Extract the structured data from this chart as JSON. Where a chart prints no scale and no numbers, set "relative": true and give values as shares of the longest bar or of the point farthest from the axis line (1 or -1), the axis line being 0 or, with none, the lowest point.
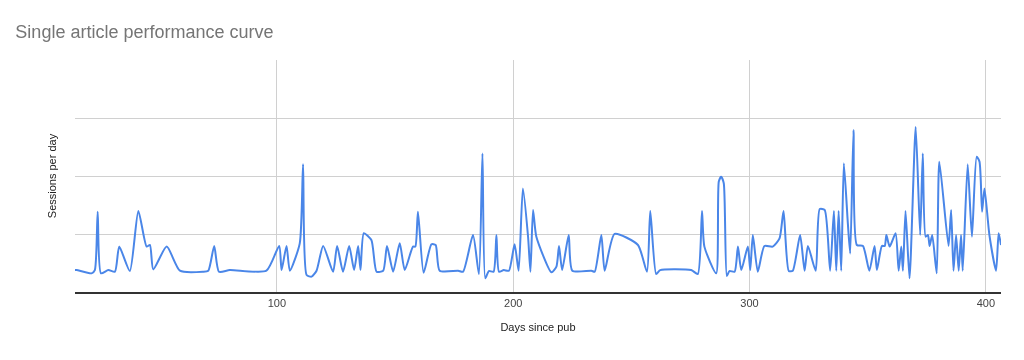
{
  "chart_data": {
    "type": "line",
    "title": "Single article performance curve",
    "xlabel": "Days since pub",
    "ylabel": "Sessions per day",
    "relative": true,
    "grid": true,
    "marker": "none",
    "line_style": "solid",
    "xlim": [
      14.6,
      406.4
    ],
    "xticks": [
      100,
      200,
      300,
      400
    ],
    "x": [
      14.6,
      15.3,
      21.6,
      23.0,
      24.2,
      25.6,
      28.7,
      31.5,
      33.3,
      37.8,
      41.4,
      44.9,
      46.3,
      47.7,
      53.4,
      59.0,
      68.7,
      71.0,
      73.5,
      75.5,
      80.1,
      95.6,
      101.0,
      102.0,
      104.1,
      105.5,
      109.7,
      111.1,
      112.6,
      114.7,
      116.8,
      119.6,
      123.8,
      125.5,
      128.0,
      130.6,
      132.7,
      134.4,
      135.4,
      136.8,
      140.0,
      142.2,
      145.0,
      146.6,
      149.2,
      152.0,
      154.1,
      157.6,
      158.6,
      159.7,
      162.1,
      165.4,
      167.2,
      168.9,
      176.7,
      178.8,
      183.0,
      185.5,
      187.0,
      188.2,
      189.7,
      191.7,
      192.9,
      194.0,
      196.0,
      198.2,
      200.6,
      202.3,
      204.1,
      206.3,
      207.3,
      208.4,
      209.8,
      216.2,
      218.3,
      219.4,
      220.7,
      223.5,
      225.0,
      233.1,
      234.5,
      237.3,
      238.7,
      242.9,
      252.8,
      256.6,
      258.0,
      260.5,
      262.2,
      275.3,
      278.1,
      279.9,
      280.9,
      285.9,
      287.0,
      288.0,
      289.1,
      290.4,
      291.5,
      293.7,
      295.1,
      296.5,
      299.3,
      300.3,
      301.4,
      303.5,
      306.3,
      309.8,
      312.7,
      314.4,
      316.6,
      318.3,
      321.4,
      323.3,
      324.7,
      328.0,
      329.7,
      331.8,
      334.1,
      335.7,
      336.7,
      337.7,
      338.8,
      339.9,
      341.6,
      342.6,
      344.0,
      345.4,
      348.0,
      350.7,
      352.9,
      353.9,
      356.0,
      357.2,
      357.9,
      359.3,
      361.8,
      363.1,
      364.2,
      364.9,
      366.0,
      367.7,
      370.3,
      372.2,
      373.3,
      374.5,
      375.5,
      376.2,
      377.3,
      379.2,
      380.3,
      384.2,
      385.3,
      386.3,
      387.4,
      388.5,
      389.5,
      390.2,
      392.3,
      394.1,
      396.1,
      397.3,
      398.4,
      399.4,
      401.5,
      404.3,
      405.4,
      406.4
    ],
    "series": [
      {
        "color": "#4a86e8",
        "values": [
          0.133,
          0.133,
          0.113,
          0.133,
          0.487,
          0.113,
          0.133,
          0.123,
          0.275,
          0.127,
          0.491,
          0.275,
          0.285,
          0.137,
          0.275,
          0.129,
          0.123,
          0.129,
          0.279,
          0.123,
          0.133,
          0.129,
          0.279,
          0.133,
          0.279,
          0.129,
          0.295,
          0.774,
          0.103,
          0.093,
          0.129,
          0.279,
          0.123,
          0.279,
          0.123,
          0.279,
          0.133,
          0.279,
          0.133,
          0.356,
          0.315,
          0.123,
          0.129,
          0.279,
          0.123,
          0.295,
          0.133,
          0.275,
          0.275,
          0.487,
          0.117,
          0.289,
          0.285,
          0.129,
          0.129,
          0.123,
          0.345,
          0.109,
          0.84,
          0.083,
          0.127,
          0.123,
          0.345,
          0.123,
          0.133,
          0.129,
          0.289,
          0.129,
          0.628,
          0.335,
          0.123,
          0.497,
          0.335,
          0.119,
          0.154,
          0.279,
          0.133,
          0.345,
          0.129,
          0.129,
          0.123,
          0.345,
          0.129,
          0.352,
          0.285,
          0.123,
          0.491,
          0.109,
          0.133,
          0.133,
          0.109,
          0.491,
          0.275,
          0.113,
          0.669,
          0.699,
          0.659,
          0.097,
          0.127,
          0.123,
          0.275,
          0.133,
          0.275,
          0.133,
          0.345,
          0.123,
          0.279,
          0.275,
          0.325,
          0.491,
          0.127,
          0.129,
          0.345,
          0.129,
          0.279,
          0.129,
          0.503,
          0.497,
          0.129,
          0.491,
          0.129,
          0.491,
          0.129,
          0.78,
          0.416,
          0.234,
          0.982,
          0.285,
          0.279,
          0.129,
          0.279,
          0.133,
          0.279,
          0.279,
          0.345,
          0.275,
          0.356,
          0.129,
          0.275,
          0.129,
          0.491,
          0.083,
          1.0,
          0.345,
          0.84,
          0.335,
          0.345,
          0.279,
          0.345,
          0.113,
          0.79,
          0.279,
          0.497,
          0.129,
          0.345,
          0.129,
          0.345,
          0.129,
          0.774,
          0.335,
          0.82,
          0.79,
          0.487,
          0.628,
          0.345,
          0.129,
          0.356,
          0.285
        ]
      }
    ]
  }
}
